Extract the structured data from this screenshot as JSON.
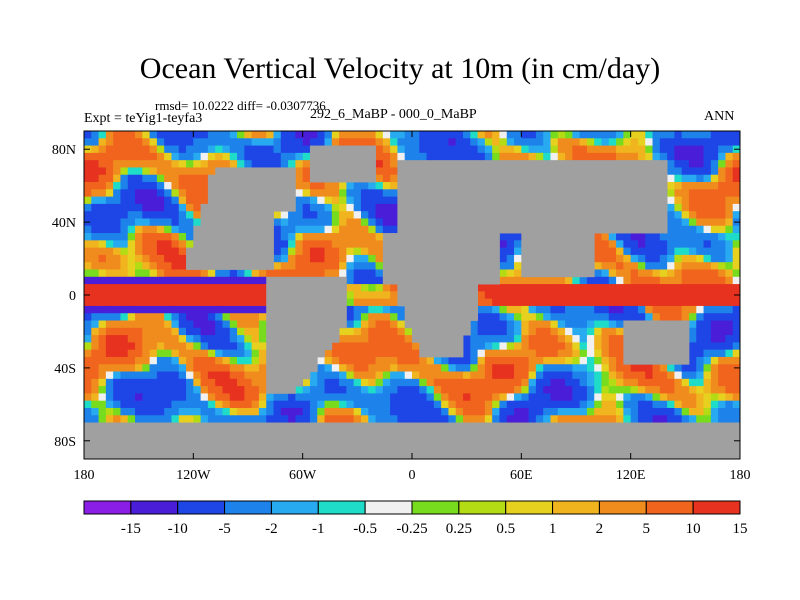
{
  "title": "Ocean Vertical Velocity at 10m (in cm/day)",
  "stats": "rmsd= 10.0222  diff= -0.0307736",
  "experiment": "Expt = teYig1-teyfa3",
  "center_label": "292_6_MaBP - 000_0_MaBP",
  "season": "ANN",
  "colors": {
    "land": "#a0a0a0",
    "palette": [
      "#8b1ee6",
      "#4a1ed8",
      "#1e46e6",
      "#1e82eb",
      "#28aaf0",
      "#1edcc8",
      "#f0f0f0",
      "#78dc1e",
      "#b4dc14",
      "#e6d21e",
      "#f0b41e",
      "#f08c1e",
      "#f0641e",
      "#e6321e"
    ]
  },
  "chart_data": {
    "type": "heatmap",
    "title": "Ocean Vertical Velocity at 10m (in cm/day)",
    "x_ticks": [
      "180",
      "120W",
      "60W",
      "0",
      "60E",
      "120E",
      "180"
    ],
    "x_tick_values": [
      -180,
      -120,
      -60,
      0,
      60,
      120,
      180
    ],
    "y_ticks": [
      "80N",
      "40N",
      "0",
      "40S",
      "80S"
    ],
    "y_tick_values": [
      80,
      40,
      0,
      -40,
      -80
    ],
    "xlim": [
      -180,
      180
    ],
    "ylim": [
      -90,
      90
    ],
    "colorbar_labels": [
      "-15",
      "-10",
      "-5",
      "-2",
      "-1",
      "-0.5",
      "-0.25",
      "0.25",
      "0.5",
      "1",
      "2",
      "5",
      "10",
      "15"
    ],
    "colorbar_levels": [
      -15,
      -10,
      -5,
      -2,
      -1,
      -0.5,
      -0.25,
      0.25,
      0.5,
      1,
      2,
      5,
      10,
      15
    ]
  }
}
